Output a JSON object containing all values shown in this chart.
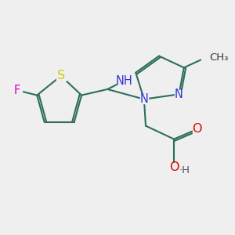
{
  "background_color": "#efefef",
  "bond_color": "#2d6e5e",
  "bond_width": 1.5,
  "figsize": [
    3.0,
    3.0
  ],
  "dpi": 100,
  "xlim": [
    -0.5,
    6.5
  ],
  "ylim": [
    -0.3,
    6.0
  ],
  "F_color": "#cc00cc",
  "S_color": "#cccc00",
  "N_color": "#3333dd",
  "O_color": "#dd0000",
  "C_color": "#2d6e5e",
  "H_color": "#555555"
}
